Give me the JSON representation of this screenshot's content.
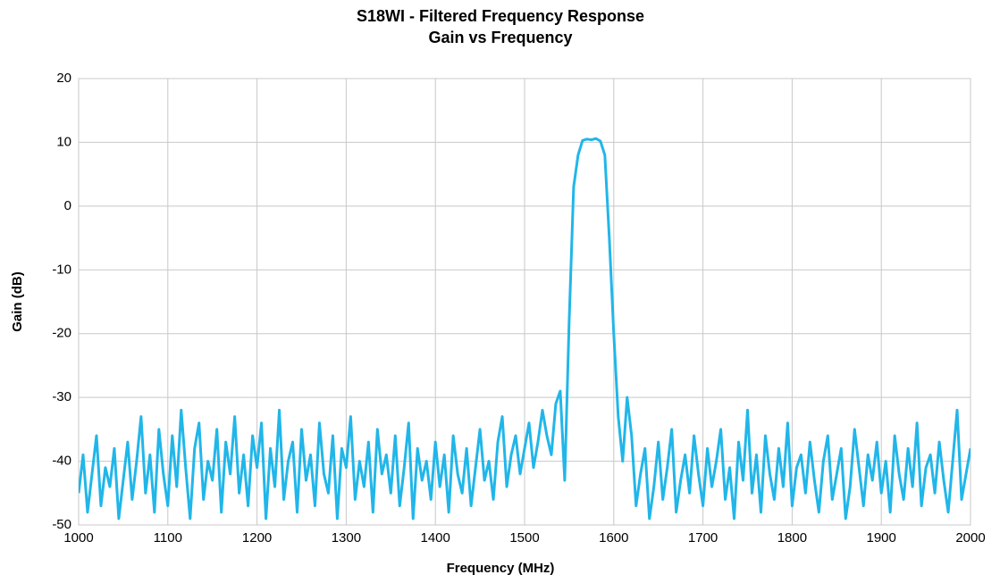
{
  "chart_data": {
    "type": "line",
    "title": "S18WI - Filtered Frequency Response",
    "subtitle": "Gain vs Frequency",
    "xlabel": "Frequency (MHz)",
    "ylabel": "Gain (dB)",
    "xlim": [
      1000,
      2000
    ],
    "ylim": [
      -50,
      20
    ],
    "xticks": [
      1000,
      1100,
      1200,
      1300,
      1400,
      1500,
      1600,
      1700,
      1800,
      1900,
      2000
    ],
    "yticks": [
      -50,
      -40,
      -30,
      -20,
      -10,
      0,
      10,
      20
    ],
    "grid": true,
    "x": [
      1000,
      1005,
      1010,
      1015,
      1020,
      1025,
      1030,
      1035,
      1040,
      1045,
      1050,
      1055,
      1060,
      1065,
      1070,
      1075,
      1080,
      1085,
      1090,
      1095,
      1100,
      1105,
      1110,
      1115,
      1120,
      1125,
      1130,
      1135,
      1140,
      1145,
      1150,
      1155,
      1160,
      1165,
      1170,
      1175,
      1180,
      1185,
      1190,
      1195,
      1200,
      1205,
      1210,
      1215,
      1220,
      1225,
      1230,
      1235,
      1240,
      1245,
      1250,
      1255,
      1260,
      1265,
      1270,
      1275,
      1280,
      1285,
      1290,
      1295,
      1300,
      1305,
      1310,
      1315,
      1320,
      1325,
      1330,
      1335,
      1340,
      1345,
      1350,
      1355,
      1360,
      1365,
      1370,
      1375,
      1380,
      1385,
      1390,
      1395,
      1400,
      1405,
      1410,
      1415,
      1420,
      1425,
      1430,
      1435,
      1440,
      1445,
      1450,
      1455,
      1460,
      1465,
      1470,
      1475,
      1480,
      1485,
      1490,
      1495,
      1500,
      1505,
      1510,
      1515,
      1520,
      1525,
      1530,
      1535,
      1540,
      1545,
      1550,
      1555,
      1560,
      1565,
      1570,
      1575,
      1580,
      1585,
      1590,
      1595,
      1600,
      1605,
      1610,
      1615,
      1620,
      1625,
      1630,
      1635,
      1640,
      1645,
      1650,
      1655,
      1660,
      1665,
      1670,
      1675,
      1680,
      1685,
      1690,
      1695,
      1700,
      1705,
      1710,
      1715,
      1720,
      1725,
      1730,
      1735,
      1740,
      1745,
      1750,
      1755,
      1760,
      1765,
      1770,
      1775,
      1780,
      1785,
      1790,
      1795,
      1800,
      1805,
      1810,
      1815,
      1820,
      1825,
      1830,
      1835,
      1840,
      1845,
      1850,
      1855,
      1860,
      1865,
      1870,
      1875,
      1880,
      1885,
      1890,
      1895,
      1900,
      1905,
      1910,
      1915,
      1920,
      1925,
      1930,
      1935,
      1940,
      1945,
      1950,
      1955,
      1960,
      1965,
      1970,
      1975,
      1980,
      1985,
      1990,
      1995,
      2000
    ],
    "series": [
      {
        "color": "#21b6e9",
        "values": [
          -45,
          -39,
          -48,
          -42,
          -36,
          -47,
          -41,
          -44,
          -38,
          -49,
          -43,
          -37,
          -46,
          -40,
          -33,
          -45,
          -39,
          -48,
          -35,
          -42,
          -47,
          -36,
          -44,
          -32,
          -41,
          -49,
          -38,
          -34,
          -46,
          -40,
          -43,
          -35,
          -48,
          -37,
          -42,
          -33,
          -45,
          -39,
          -47,
          -36,
          -41,
          -34,
          -49,
          -38,
          -44,
          -32,
          -46,
          -40,
          -37,
          -48,
          -35,
          -43,
          -39,
          -47,
          -34,
          -42,
          -45,
          -36,
          -49,
          -38,
          -41,
          -33,
          -46,
          -40,
          -44,
          -37,
          -48,
          -35,
          -42,
          -39,
          -45,
          -36,
          -47,
          -41,
          -34,
          -49,
          -38,
          -43,
          -40,
          -46,
          -37,
          -44,
          -39,
          -48,
          -36,
          -42,
          -45,
          -38,
          -47,
          -41,
          -35,
          -43,
          -40,
          -46,
          -37,
          -33,
          -44,
          -39,
          -36,
          -42,
          -38,
          -34,
          -41,
          -37,
          -32,
          -36,
          -39,
          -31,
          -29,
          -43,
          -18,
          3,
          8,
          10.3,
          10.5,
          10.4,
          10.6,
          10.2,
          8,
          -5,
          -20,
          -33,
          -40,
          -30,
          -36,
          -47,
          -42,
          -38,
          -49,
          -44,
          -37,
          -46,
          -41,
          -35,
          -48,
          -43,
          -39,
          -45,
          -36,
          -42,
          -47,
          -38,
          -44,
          -40,
          -35,
          -46,
          -41,
          -49,
          -37,
          -43,
          -32,
          -45,
          -39,
          -48,
          -36,
          -42,
          -46,
          -38,
          -44,
          -34,
          -47,
          -41,
          -39,
          -45,
          -37,
          -43,
          -48,
          -40,
          -36,
          -46,
          -42,
          -38,
          -49,
          -44,
          -35,
          -41,
          -47,
          -39,
          -43,
          -37,
          -45,
          -40,
          -48,
          -36,
          -42,
          -46,
          -38,
          -44,
          -34,
          -47,
          -41,
          -39,
          -45,
          -37,
          -43,
          -48,
          -40,
          -32,
          -46,
          -42,
          -38
        ]
      }
    ]
  }
}
